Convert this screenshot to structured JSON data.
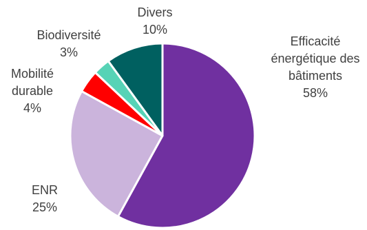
{
  "chart_data": {
    "type": "pie",
    "title": "",
    "slices": [
      {
        "label": [
          "Efficacité",
          "énergétique des",
          "bâtiments"
        ],
        "value": 58,
        "value_label": "58%",
        "color": "#7030a0"
      },
      {
        "label": [
          "ENR"
        ],
        "value": 25,
        "value_label": "25%",
        "color": "#cbb4dc"
      },
      {
        "label": [
          "Mobilité",
          "durable"
        ],
        "value": 4,
        "value_label": "4%",
        "color": "#ff0000"
      },
      {
        "label": [
          "Biodiversité"
        ],
        "value": 3,
        "value_label": "3%",
        "color": "#57d3b6"
      },
      {
        "label": [
          "Divers"
        ],
        "value": 10,
        "value_label": "10%",
        "color": "#006060"
      }
    ],
    "start_angle_deg": 0,
    "direction": "clockwise",
    "legend": "none"
  }
}
